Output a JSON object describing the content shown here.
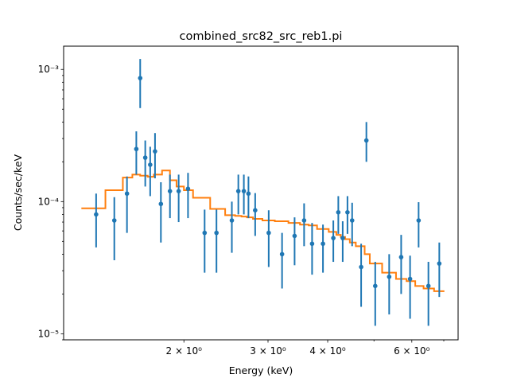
{
  "chart_data": {
    "type": "scatter",
    "title": "combined_src82_src_reb1.pi",
    "xlabel": "Energy (keV)",
    "ylabel": "Counts/sec/keV",
    "xscale": "log",
    "yscale": "log",
    "xlim": [
      1.12,
      7.5
    ],
    "ylim": [
      9e-06,
      0.0015
    ],
    "grid": false,
    "legend": "none",
    "colors": {
      "data": "#1f77b4",
      "model": "#ff7f0e"
    },
    "x_ticks": [
      {
        "value": 2,
        "label": "2 × 10⁰"
      },
      {
        "value": 3,
        "label": "3 × 10⁰"
      },
      {
        "value": 4,
        "label": "4 × 10⁰"
      },
      {
        "value": 6,
        "label": "6 × 10⁰"
      }
    ],
    "y_ticks": [
      {
        "value": 1e-05,
        "label": "10⁻⁵"
      },
      {
        "value": 0.0001,
        "label": "10⁻⁴"
      },
      {
        "value": 0.001,
        "label": "10⁻³"
      }
    ],
    "series": [
      {
        "type": "errorbar",
        "points": [
          {
            "x": 1.31,
            "y": 8e-05,
            "lo": 4.5e-05,
            "hi": 0.000115
          },
          {
            "x": 1.43,
            "y": 7.2e-05,
            "lo": 3.6e-05,
            "hi": 0.000108
          },
          {
            "x": 1.52,
            "y": 0.000115,
            "lo": 5.8e-05,
            "hi": 0.000155
          },
          {
            "x": 1.59,
            "y": 0.00025,
            "lo": 0.00016,
            "hi": 0.00034
          },
          {
            "x": 1.62,
            "y": 0.00086,
            "lo": 0.00051,
            "hi": 0.0012
          },
          {
            "x": 1.66,
            "y": 0.000215,
            "lo": 0.00013,
            "hi": 0.00029
          },
          {
            "x": 1.7,
            "y": 0.00019,
            "lo": 0.00011,
            "hi": 0.00026
          },
          {
            "x": 1.74,
            "y": 0.00024,
            "lo": 0.00015,
            "hi": 0.00033
          },
          {
            "x": 1.79,
            "y": 9.6e-05,
            "lo": 4.9e-05,
            "hi": 0.00014
          },
          {
            "x": 1.87,
            "y": 0.00012,
            "lo": 7.5e-05,
            "hi": 0.00016
          },
          {
            "x": 1.95,
            "y": 0.00012,
            "lo": 7e-05,
            "hi": 0.00016
          },
          {
            "x": 2.04,
            "y": 0.000125,
            "lo": 7.5e-05,
            "hi": 0.000165
          },
          {
            "x": 2.21,
            "y": 5.8e-05,
            "lo": 2.9e-05,
            "hi": 8.7e-05
          },
          {
            "x": 2.34,
            "y": 5.8e-05,
            "lo": 2.9e-05,
            "hi": 8.7e-05
          },
          {
            "x": 2.52,
            "y": 7.2e-05,
            "lo": 4.1e-05,
            "hi": 0.0001
          },
          {
            "x": 2.6,
            "y": 0.00012,
            "lo": 8e-05,
            "hi": 0.00016
          },
          {
            "x": 2.67,
            "y": 0.00012,
            "lo": 8e-05,
            "hi": 0.00016
          },
          {
            "x": 2.73,
            "y": 0.000115,
            "lo": 7.5e-05,
            "hi": 0.000155
          },
          {
            "x": 2.82,
            "y": 8.6e-05,
            "lo": 5.5e-05,
            "hi": 0.000116
          },
          {
            "x": 3.01,
            "y": 5.8e-05,
            "lo": 3.2e-05,
            "hi": 8.6e-05
          },
          {
            "x": 3.21,
            "y": 4e-05,
            "lo": 2.2e-05,
            "hi": 5.8e-05
          },
          {
            "x": 3.41,
            "y": 5.5e-05,
            "lo": 3.3e-05,
            "hi": 7.6e-05
          },
          {
            "x": 3.57,
            "y": 7.2e-05,
            "lo": 4.6e-05,
            "hi": 9.7e-05
          },
          {
            "x": 3.71,
            "y": 4.8e-05,
            "lo": 2.8e-05,
            "hi": 6.9e-05
          },
          {
            "x": 3.91,
            "y": 4.8e-05,
            "lo": 2.9e-05,
            "hi": 6.7e-05
          },
          {
            "x": 4.11,
            "y": 5.3e-05,
            "lo": 3.5e-05,
            "hi": 7.2e-05
          },
          {
            "x": 4.21,
            "y": 8.3e-05,
            "lo": 5.7e-05,
            "hi": 0.00011
          },
          {
            "x": 4.3,
            "y": 5.3e-05,
            "lo": 3.5e-05,
            "hi": 7.1e-05
          },
          {
            "x": 4.4,
            "y": 8.3e-05,
            "lo": 5.7e-05,
            "hi": 0.00011
          },
          {
            "x": 4.5,
            "y": 7.2e-05,
            "lo": 4.6e-05,
            "hi": 9.8e-05
          },
          {
            "x": 4.7,
            "y": 3.2e-05,
            "lo": 1.6e-05,
            "hi": 4.8e-05
          },
          {
            "x": 4.82,
            "y": 0.00029,
            "lo": 0.0002,
            "hi": 0.0004
          },
          {
            "x": 5.03,
            "y": 2.3e-05,
            "lo": 1.15e-05,
            "hi": 3.5e-05
          },
          {
            "x": 5.38,
            "y": 2.7e-05,
            "lo": 1.4e-05,
            "hi": 4e-05
          },
          {
            "x": 5.7,
            "y": 3.8e-05,
            "lo": 2e-05,
            "hi": 5.6e-05
          },
          {
            "x": 5.95,
            "y": 2.6e-05,
            "lo": 1.3e-05,
            "hi": 3.9e-05
          },
          {
            "x": 6.2,
            "y": 7.2e-05,
            "lo": 4.5e-05,
            "hi": 9.9e-05
          },
          {
            "x": 6.5,
            "y": 2.3e-05,
            "lo": 1.15e-05,
            "hi": 3.5e-05
          },
          {
            "x": 6.85,
            "y": 3.4e-05,
            "lo": 1.9e-05,
            "hi": 4.9e-05
          }
        ]
      },
      {
        "type": "step",
        "edges": [
          1.22,
          1.37,
          1.49,
          1.56,
          1.62,
          1.68,
          1.73,
          1.8,
          1.87,
          1.93,
          2.0,
          2.09,
          2.27,
          2.44,
          2.56,
          2.64,
          2.71,
          2.79,
          2.92,
          3.1,
          3.31,
          3.5,
          3.65,
          3.8,
          4.02,
          4.17,
          4.26,
          4.35,
          4.45,
          4.58,
          4.78,
          4.9,
          5.2,
          5.56,
          5.85,
          6.1,
          6.35,
          6.68,
          7.02
        ],
        "values": [
          8.9e-05,
          0.000122,
          0.000152,
          0.00016,
          0.000157,
          0.000154,
          0.00016,
          0.000172,
          0.000145,
          0.00013,
          0.000122,
          0.000107,
          8.8e-05,
          7.9e-05,
          7.8e-05,
          7.7e-05,
          7.6e-05,
          7.4e-05,
          7.2e-05,
          7.1e-05,
          6.9e-05,
          6.7e-05,
          6.6e-05,
          6.2e-05,
          5.9e-05,
          5.6e-05,
          5.4e-05,
          5.2e-05,
          4.9e-05,
          4.6e-05,
          4e-05,
          3.4e-05,
          2.9e-05,
          2.6e-05,
          2.5e-05,
          2.3e-05,
          2.2e-05,
          2.1e-05
        ]
      }
    ]
  }
}
